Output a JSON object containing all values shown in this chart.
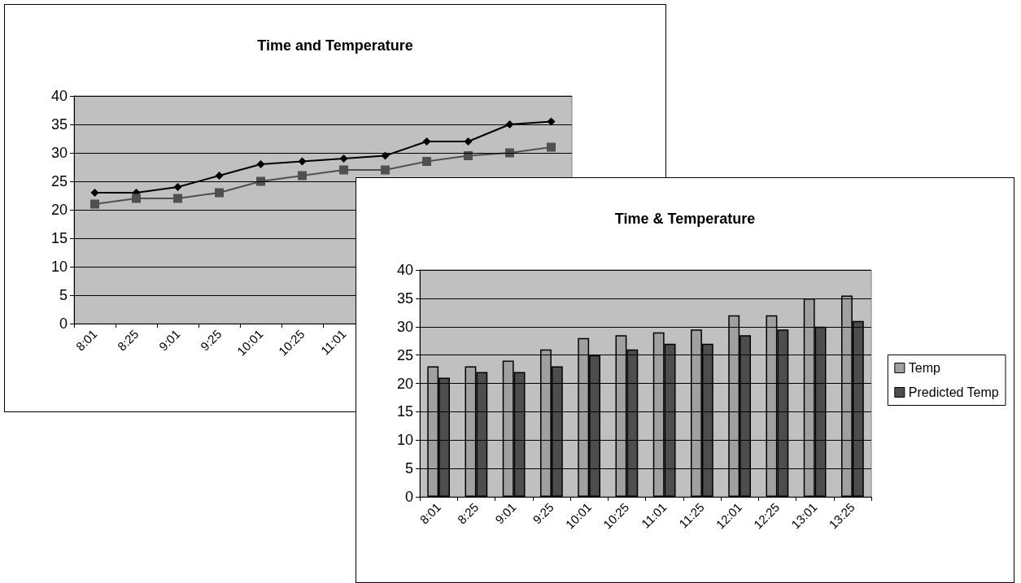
{
  "chart_data": [
    {
      "type": "line",
      "title": "Time and Temperature",
      "categories": [
        "8:01",
        "8:25",
        "9:01",
        "9:25",
        "10:01",
        "10:25",
        "11:01",
        null,
        null,
        null,
        null,
        null
      ],
      "series": [
        {
          "color": "#000000",
          "marker": "diamond",
          "values": [
            23,
            23,
            24,
            26,
            28,
            28.5,
            29,
            29.5,
            32,
            32,
            35,
            35.5
          ]
        },
        {
          "color": "#505050",
          "marker": "square",
          "values": [
            21,
            22,
            22,
            23,
            25,
            26,
            27,
            27,
            28.5,
            29.5,
            30,
            31
          ]
        }
      ],
      "ylim": [
        0,
        40
      ],
      "yticks": [
        0,
        5,
        10,
        15,
        20,
        25,
        30,
        35,
        40
      ],
      "grid": "y",
      "legend": false,
      "line_style": "solid"
    },
    {
      "type": "bar",
      "title": "Time & Temperature",
      "categories": [
        "8:01",
        "8:25",
        "9:01",
        "9:25",
        "10:01",
        "10:25",
        "11:01",
        "11:25",
        "12:01",
        "12:25",
        "13:01",
        "13:25"
      ],
      "series": [
        {
          "name": "Temp",
          "color": "#a0a0a0",
          "values": [
            23,
            23,
            24,
            26,
            28,
            28.5,
            29,
            29.5,
            32,
            32,
            35,
            35.5
          ]
        },
        {
          "name": "Predicted Temp",
          "color": "#4d4d4d",
          "values": [
            21,
            22,
            22,
            23,
            25,
            26,
            27,
            27,
            28.5,
            29.5,
            30,
            31
          ]
        }
      ],
      "ylim": [
        0,
        40
      ],
      "yticks": [
        0,
        5,
        10,
        15,
        20,
        25,
        30,
        35,
        40
      ],
      "grid": "y",
      "legend": "right"
    }
  ]
}
